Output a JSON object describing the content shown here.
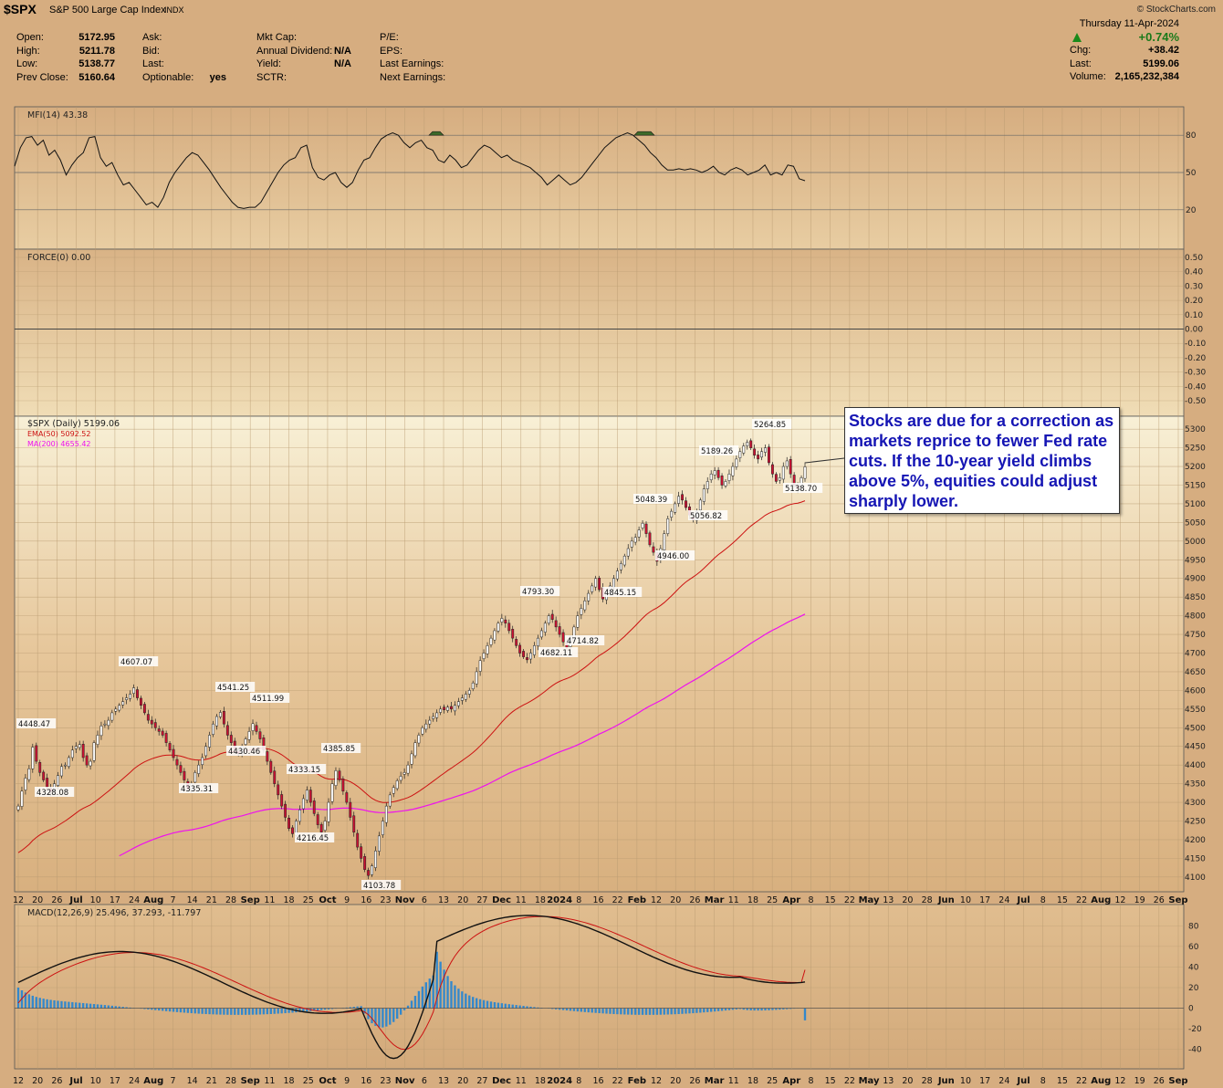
{
  "header": {
    "symbol": "$SPX",
    "name": "S&P 500 Large Cap Index",
    "exchange": "INDX",
    "brand": "© StockCharts.com",
    "date": "Thursday  11-Apr-2024",
    "change_pct": "+0.74%"
  },
  "quote": {
    "col1": [
      [
        "Open:",
        "5172.95"
      ],
      [
        "High:",
        "5211.78"
      ],
      [
        "Low:",
        "5138.77"
      ],
      [
        "Prev Close:",
        "5160.64"
      ]
    ],
    "col2": [
      [
        "Ask:",
        ""
      ],
      [
        "Bid:",
        ""
      ],
      [
        "Last:",
        ""
      ],
      [
        "Optionable:",
        "yes"
      ]
    ],
    "col3": [
      [
        "Mkt Cap:",
        ""
      ],
      [
        "Annual Dividend:",
        "N/A"
      ],
      [
        "Yield:",
        "N/A"
      ],
      [
        "SCTR:",
        ""
      ]
    ],
    "col4": [
      [
        "P/E:",
        ""
      ],
      [
        "EPS:",
        ""
      ],
      [
        "Last Earnings:",
        ""
      ],
      [
        "Next Earnings:",
        ""
      ]
    ],
    "col5": [
      [
        "Chg:",
        "+38.42"
      ],
      [
        "Last:",
        "5199.06"
      ],
      [
        "Volume:",
        "2,165,232,384"
      ]
    ]
  },
  "colors": {
    "background": "#d6ad80",
    "panel_light": "#f6e9c4",
    "grid": "#b89a70",
    "up_candle": "#ffffff",
    "down_candle": "#cc1133",
    "ema": "#cc1111",
    "ma": "#ee11ee",
    "macd_hist": "#3388cc",
    "callout_text": "#1515b4"
  },
  "callout_text": "Stocks are due for a correction as markets reprice to fewer Fed rate cuts. If the 10-year yield climbs above 5%, equities could adjust sharply lower.",
  "chart_data": [
    {
      "type": "line",
      "panel": "mfi",
      "label": "MFI(14) 43.38",
      "ylim": [
        0,
        100
      ],
      "yticks": [
        20,
        50,
        80
      ],
      "values": [
        55,
        70,
        78,
        79,
        72,
        76,
        64,
        68,
        60,
        48,
        56,
        62,
        66,
        78,
        79,
        62,
        55,
        58,
        48,
        40,
        42,
        36,
        30,
        24,
        26,
        22,
        30,
        42,
        50,
        56,
        62,
        66,
        64,
        58,
        52,
        45,
        38,
        32,
        26,
        22,
        21,
        22,
        22,
        26,
        34,
        42,
        50,
        56,
        60,
        62,
        70,
        72,
        54,
        46,
        44,
        48,
        50,
        42,
        38,
        42,
        52,
        60,
        62,
        70,
        77,
        80,
        82,
        80,
        74,
        70,
        74,
        76,
        70,
        68,
        60,
        58,
        64,
        60,
        54,
        56,
        62,
        68,
        72,
        70,
        66,
        62,
        64,
        60,
        58,
        56,
        54,
        50,
        46,
        40,
        44,
        48,
        44,
        40,
        42,
        46,
        52,
        58,
        64,
        70,
        74,
        78,
        80,
        82,
        80,
        76,
        72,
        66,
        62,
        56,
        52,
        52,
        53,
        52,
        53,
        52,
        50,
        52,
        55,
        50,
        48,
        52,
        54,
        52,
        48,
        50,
        52,
        56,
        48,
        50,
        48,
        56,
        55,
        45,
        43.38
      ]
    },
    {
      "type": "line",
      "panel": "force",
      "label": "FORCE(0) 0.00",
      "ylim": [
        -0.5,
        0.5
      ],
      "yticks": [
        0.5,
        0.4,
        0.3,
        0.2,
        0.1,
        0.0,
        -0.1,
        -0.2,
        -0.3,
        -0.4,
        -0.5
      ],
      "values": [
        0.0
      ]
    },
    {
      "type": "candlestick",
      "panel": "price",
      "label": "$SPX (Daily) 5199.06",
      "ylim": [
        4080,
        5320
      ],
      "yticks": [
        4100,
        4150,
        4200,
        4250,
        4300,
        4350,
        4400,
        4450,
        4500,
        4550,
        4600,
        4650,
        4700,
        4750,
        4800,
        4850,
        4900,
        4950,
        5000,
        5050,
        5100,
        5150,
        5200,
        5250,
        5300
      ],
      "close": [
        4290,
        4330,
        4365,
        4390,
        4448,
        4410,
        4380,
        4360,
        4340,
        4328,
        4350,
        4372,
        4396,
        4400,
        4420,
        4440,
        4450,
        4455,
        4420,
        4400,
        4410,
        4460,
        4480,
        4505,
        4510,
        4520,
        4540,
        4550,
        4560,
        4570,
        4580,
        4590,
        4607,
        4580,
        4560,
        4540,
        4520,
        4510,
        4500,
        4490,
        4480,
        4460,
        4440,
        4420,
        4400,
        4380,
        4360,
        4335,
        4350,
        4380,
        4400,
        4420,
        4450,
        4480,
        4510,
        4530,
        4541,
        4510,
        4480,
        4460,
        4440,
        4430,
        4450,
        4470,
        4490,
        4511,
        4490,
        4470,
        4440,
        4410,
        4380,
        4350,
        4320,
        4290,
        4260,
        4230,
        4216,
        4250,
        4280,
        4310,
        4333,
        4300,
        4270,
        4240,
        4220,
        4250,
        4300,
        4350,
        4385,
        4360,
        4330,
        4300,
        4260,
        4220,
        4180,
        4150,
        4120,
        4104,
        4130,
        4170,
        4210,
        4250,
        4290,
        4320,
        4340,
        4358,
        4370,
        4380,
        4400,
        4430,
        4460,
        4480,
        4500,
        4510,
        4520,
        4530,
        4540,
        4550,
        4548,
        4555,
        4550,
        4560,
        4570,
        4580,
        4590,
        4600,
        4620,
        4650,
        4680,
        4700,
        4720,
        4740,
        4760,
        4780,
        4793,
        4780,
        4760,
        4740,
        4720,
        4700,
        4690,
        4682,
        4700,
        4720,
        4740,
        4760,
        4780,
        4800,
        4790,
        4770,
        4750,
        4730,
        4715,
        4740,
        4770,
        4800,
        4820,
        4840,
        4860,
        4880,
        4900,
        4870,
        4845,
        4860,
        4880,
        4900,
        4920,
        4940,
        4960,
        4980,
        5000,
        5010,
        5030,
        5048,
        5020,
        4990,
        4970,
        4946,
        4980,
        5020,
        5060,
        5080,
        5100,
        5120,
        5110,
        5090,
        5070,
        5057,
        5080,
        5110,
        5140,
        5160,
        5180,
        5189,
        5170,
        5150,
        5160,
        5180,
        5200,
        5220,
        5240,
        5255,
        5265,
        5250,
        5230,
        5220,
        5240,
        5250,
        5210,
        5180,
        5160,
        5170,
        5200,
        5215,
        5180,
        5150,
        5139,
        5170,
        5199.06
      ]
    },
    {
      "type": "line",
      "panel": "price",
      "name": "EMA(50) 5092.52",
      "description": "50-day exponential moving average rising from ~4160 to 5092.52"
    },
    {
      "type": "line",
      "panel": "price",
      "name": "MA(200) 4655.42",
      "description": "200-day simple moving average rising from ~4080 to 4655.42"
    },
    {
      "type": "bar",
      "panel": "price_labels",
      "annotations": [
        "4448.47",
        "4328.08",
        "4607.07",
        "4335.31",
        "4541.25",
        "4430.46",
        "4511.99",
        "4216.45",
        "4333.15",
        "4385.85",
        "4103.78",
        "4793.30",
        "4682.11",
        "4714.82",
        "4845.15",
        "5048.39",
        "4946.00",
        "5189.26",
        "5056.82",
        "5264.85",
        "5138.70"
      ]
    },
    {
      "type": "line",
      "panel": "macd",
      "label": "MACD(12,26,9) 25.496, 37.293, -11.797",
      "ylim": [
        -50,
        90
      ],
      "yticks": [
        80,
        60,
        40,
        20,
        0,
        -20,
        -40
      ],
      "macd_last": 25.496,
      "signal_last": 37.293,
      "hist_last": -11.797
    },
    {
      "type": "bar",
      "panel": "x_axis",
      "x_tick_labels": [
        "12",
        "20",
        "26",
        "Jul",
        "10",
        "17",
        "24",
        "Aug",
        "7",
        "14",
        "21",
        "28",
        "Sep",
        "11",
        "18",
        "25",
        "Oct",
        "9",
        "16",
        "23",
        "Nov",
        "6",
        "13",
        "20",
        "27",
        "Dec",
        "11",
        "18",
        "2024",
        "8",
        "16",
        "22",
        "Feb",
        "12",
        "20",
        "26",
        "Mar",
        "11",
        "18",
        "25",
        "Apr",
        "8",
        "15",
        "22",
        "May",
        "13",
        "20",
        "28",
        "Jun",
        "10",
        "17",
        "24",
        "Jul",
        "8",
        "15",
        "22",
        "Aug",
        "12",
        "19",
        "26",
        "Sep"
      ]
    }
  ]
}
